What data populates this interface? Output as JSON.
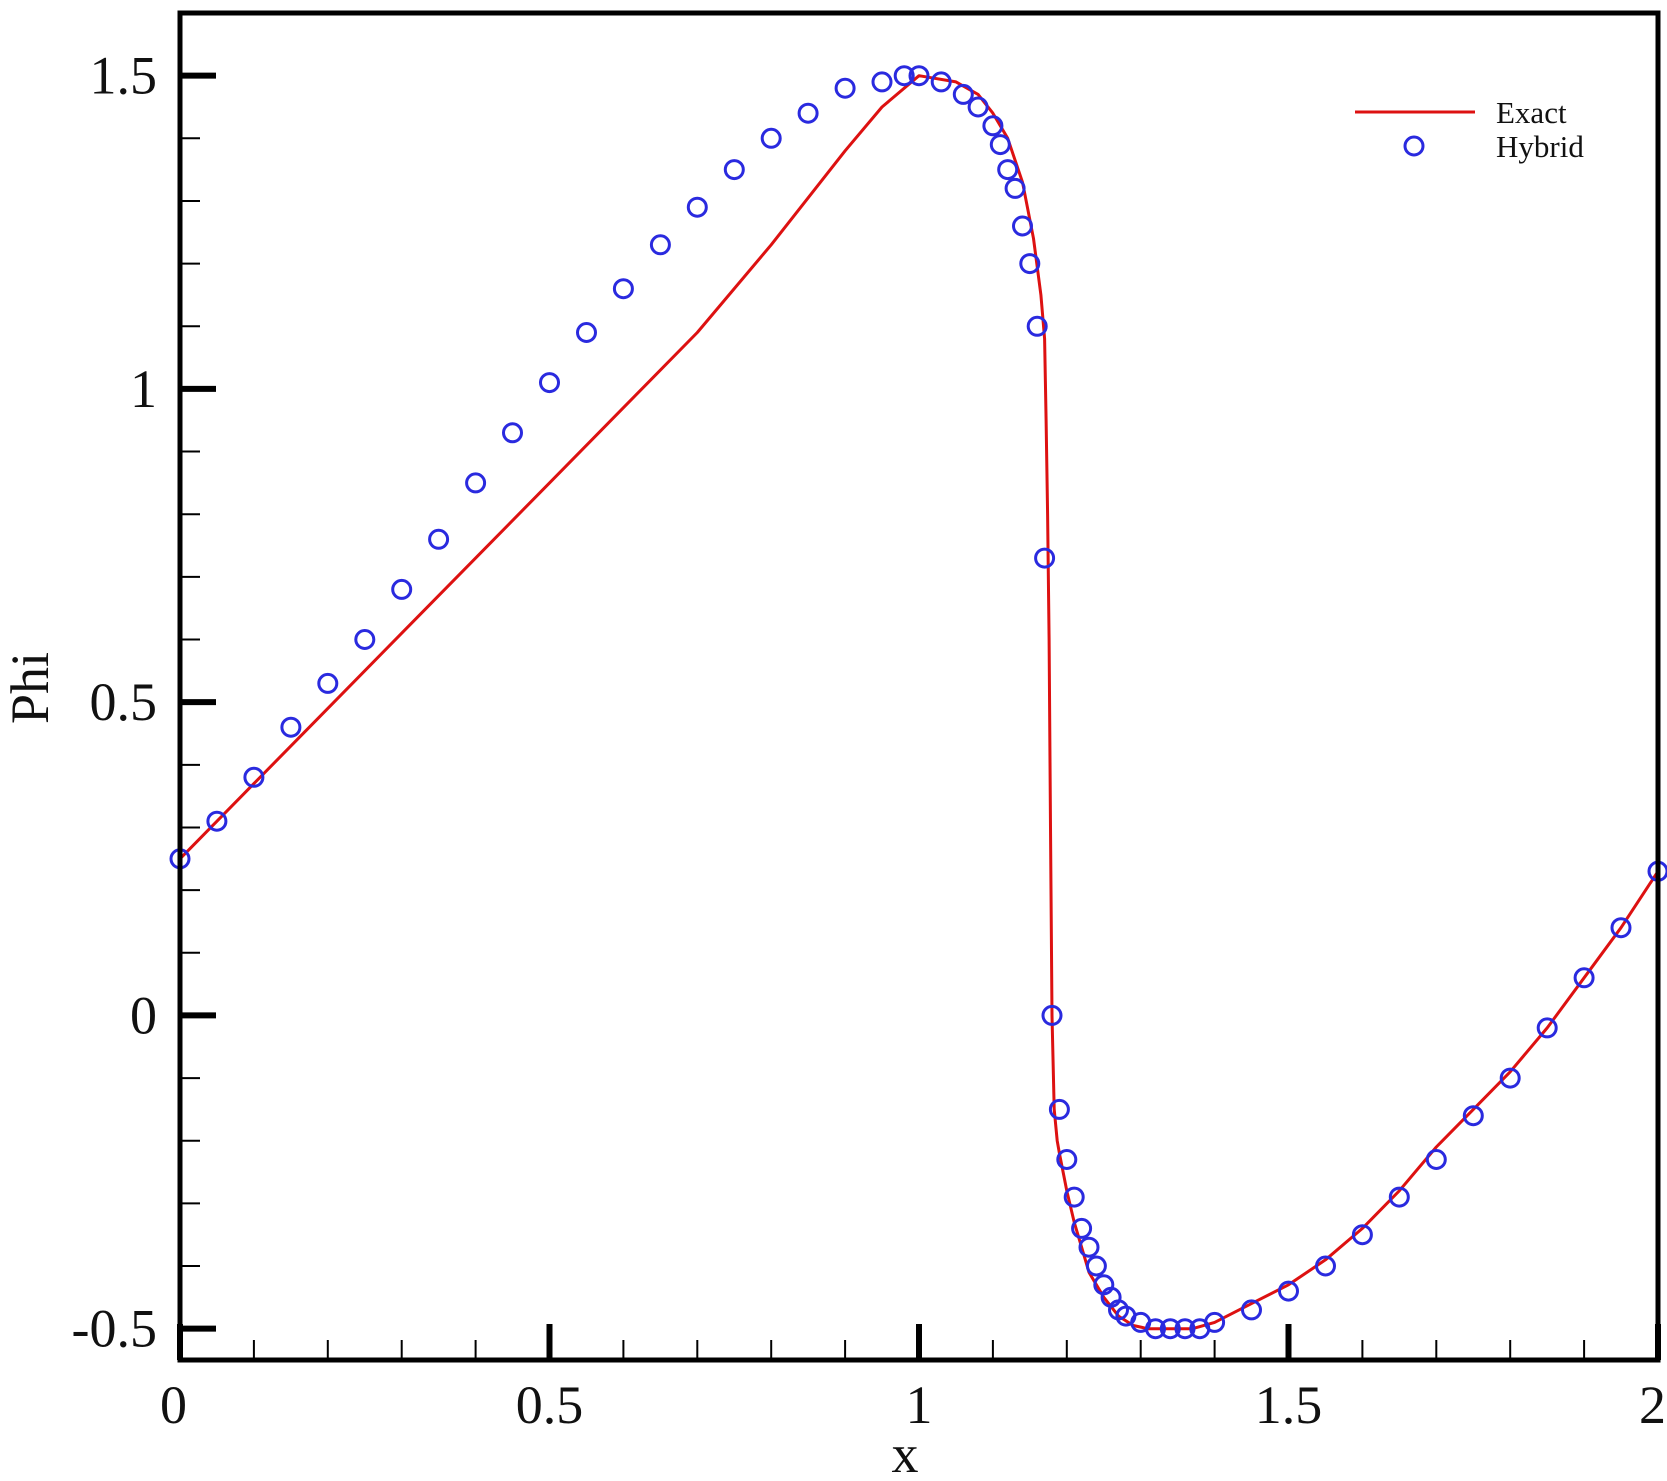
{
  "chart_data": {
    "type": "line",
    "title": "",
    "xlabel": "x",
    "ylabel": "Phi",
    "xlim": [
      0,
      2
    ],
    "ylim": [
      -0.55,
      1.6
    ],
    "x_ticks": [
      {
        "value": 0,
        "label": "0"
      },
      {
        "value": 0.5,
        "label": "0.5"
      },
      {
        "value": 1,
        "label": "1"
      },
      {
        "value": 1.5,
        "label": "1.5"
      },
      {
        "value": 2,
        "label": "2"
      }
    ],
    "y_ticks": [
      {
        "value": -0.5,
        "label": "-0.5"
      },
      {
        "value": 0,
        "label": "0"
      },
      {
        "value": 0.5,
        "label": "0.5"
      },
      {
        "value": 1,
        "label": "1"
      },
      {
        "value": 1.5,
        "label": "1.5"
      }
    ],
    "x_minor_step": 0.1,
    "y_minor_step": 0.1,
    "grid": false,
    "legend_position": "top-right",
    "series": [
      {
        "name": "Exact",
        "style": "line",
        "color": "#dd1111",
        "x": [
          0,
          0.1,
          0.2,
          0.3,
          0.4,
          0.5,
          0.6,
          0.7,
          0.8,
          0.9,
          0.95,
          1.0,
          1.05,
          1.08,
          1.1,
          1.12,
          1.14,
          1.155,
          1.165,
          1.17,
          1.172,
          1.174,
          1.176,
          1.178,
          1.18,
          1.183,
          1.187,
          1.19,
          1.2,
          1.21,
          1.22,
          1.23,
          1.25,
          1.27,
          1.29,
          1.31,
          1.33,
          1.35,
          1.37,
          1.4,
          1.45,
          1.5,
          1.55,
          1.6,
          1.65,
          1.7,
          1.75,
          1.8,
          1.85,
          1.9,
          1.95,
          2.0
        ],
        "y": [
          0.25,
          0.37,
          0.49,
          0.61,
          0.73,
          0.85,
          0.97,
          1.09,
          1.23,
          1.38,
          1.45,
          1.5,
          1.49,
          1.47,
          1.44,
          1.4,
          1.33,
          1.24,
          1.15,
          1.08,
          0.95,
          0.8,
          0.6,
          0.3,
          0.0,
          -0.15,
          -0.2,
          -0.22,
          -0.28,
          -0.33,
          -0.37,
          -0.41,
          -0.45,
          -0.48,
          -0.495,
          -0.5,
          -0.5,
          -0.5,
          -0.5,
          -0.49,
          -0.46,
          -0.43,
          -0.39,
          -0.34,
          -0.28,
          -0.21,
          -0.15,
          -0.09,
          -0.02,
          0.06,
          0.14,
          0.23
        ]
      },
      {
        "name": "Hybrid",
        "style": "markers",
        "marker": "circle",
        "color": "#2a2adf",
        "x": [
          0,
          0.05,
          0.1,
          0.15,
          0.2,
          0.25,
          0.3,
          0.35,
          0.4,
          0.45,
          0.5,
          0.55,
          0.6,
          0.65,
          0.7,
          0.75,
          0.8,
          0.85,
          0.9,
          0.95,
          0.98,
          1.0,
          1.03,
          1.06,
          1.08,
          1.1,
          1.11,
          1.12,
          1.13,
          1.14,
          1.15,
          1.16,
          1.17,
          1.18,
          1.19,
          1.2,
          1.21,
          1.22,
          1.23,
          1.24,
          1.25,
          1.26,
          1.27,
          1.28,
          1.3,
          1.32,
          1.34,
          1.36,
          1.38,
          1.4,
          1.45,
          1.5,
          1.55,
          1.6,
          1.65,
          1.7,
          1.75,
          1.8,
          1.85,
          1.9,
          1.95,
          2.0
        ],
        "y": [
          0.25,
          0.31,
          0.38,
          0.46,
          0.53,
          0.6,
          0.68,
          0.76,
          0.85,
          0.93,
          1.01,
          1.09,
          1.16,
          1.23,
          1.29,
          1.35,
          1.4,
          1.44,
          1.48,
          1.49,
          1.5,
          1.5,
          1.49,
          1.47,
          1.45,
          1.42,
          1.39,
          1.35,
          1.32,
          1.26,
          1.2,
          1.1,
          0.73,
          0.0,
          -0.15,
          -0.23,
          -0.29,
          -0.34,
          -0.37,
          -0.4,
          -0.43,
          -0.45,
          -0.47,
          -0.48,
          -0.49,
          -0.5,
          -0.5,
          -0.5,
          -0.5,
          -0.49,
          -0.47,
          -0.44,
          -0.4,
          -0.35,
          -0.29,
          -0.23,
          -0.16,
          -0.1,
          -0.02,
          0.06,
          0.14,
          0.23
        ]
      }
    ]
  }
}
